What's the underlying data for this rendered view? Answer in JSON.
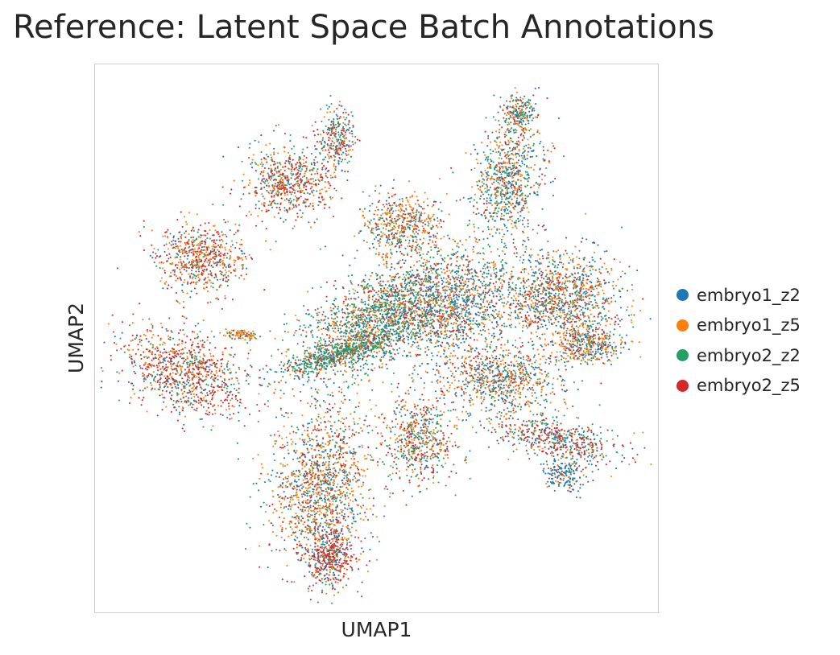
{
  "figure": {
    "title": "Reference: Latent Space Batch Annotations"
  },
  "chart_data": {
    "type": "scatter",
    "title": "Reference: Latent Space Batch Annotations",
    "xlabel": "UMAP1",
    "ylabel": "UMAP2",
    "xticks": [],
    "yticks": [],
    "grid": false,
    "legend_placement": "right",
    "series": [
      {
        "name": "embryo1_z2",
        "color": "#1f77b4",
        "share": 0.25,
        "dominant_regions": [
          "central core",
          "right lobes",
          "lower-right lobe"
        ]
      },
      {
        "name": "embryo1_z5",
        "color": "#ff7f0e",
        "share": 0.25,
        "dominant_regions": [
          "bottom-center lobe",
          "right lobes",
          "left lobes"
        ]
      },
      {
        "name": "embryo2_z2",
        "color": "#279e68",
        "share": 0.25,
        "dominant_regions": [
          "central diagonal band",
          "top lobes"
        ]
      },
      {
        "name": "embryo2_z5",
        "color": "#d62728",
        "share": 0.25,
        "dominant_regions": [
          "left lobes",
          "bottom tail",
          "upper-left lobe"
        ]
      }
    ]
  }
}
